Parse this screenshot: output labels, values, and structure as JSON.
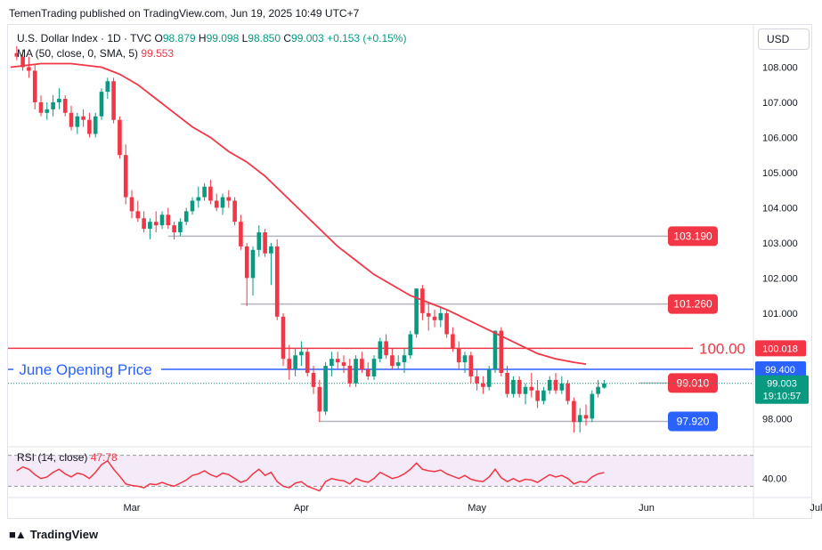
{
  "header": {
    "publisher": "TemenTrading published on TradingView.com, Jun 19, 2025 10:49 UTC+7"
  },
  "legend": {
    "symbol": "U.S. Dollar Index · 1D · TVC",
    "o_label": "O",
    "o_value": "98.879",
    "h_label": "H",
    "h_value": "99.098",
    "l_label": "L",
    "l_value": "98.850",
    "c_label": "C",
    "c_value": "99.003",
    "change": "+0.153 (+0.15%)",
    "ma_label": "MA (50, close, 0, SMA, 5)",
    "ma_value": "99.553",
    "rsi_label": "RSI (14, close)",
    "rsi_value": "47.78"
  },
  "currency": "USD",
  "footer": {
    "logo_icon": "tradingview-logo-icon",
    "logo_text": "TradingView"
  },
  "colors": {
    "up": "#089981",
    "down": "#f23645",
    "ma": "#f23645",
    "blue": "#2962ff",
    "rsi": "#f23645"
  },
  "chart_data": {
    "type": "candlestick",
    "price_ylim": [
      97.4,
      109.0
    ],
    "price_ticks": [
      "108.000",
      "107.000",
      "106.000",
      "105.000",
      "104.000",
      "103.000",
      "102.000",
      "101.000",
      "98.000"
    ],
    "price_tick_values": [
      108,
      107,
      106,
      105,
      104,
      103,
      102,
      101,
      98
    ],
    "x_labels": [
      "Mar",
      "Apr",
      "May",
      "Jun",
      "Jul"
    ],
    "x_label_days": [
      20,
      48,
      77,
      105,
      133
    ],
    "candles": [
      {
        "d": 1,
        "o": 108.4,
        "h": 108.6,
        "l": 108.2,
        "c": 108.3
      },
      {
        "d": 2,
        "o": 108.3,
        "h": 108.5,
        "l": 107.9,
        "c": 108.0
      },
      {
        "d": 3,
        "o": 108.0,
        "h": 108.3,
        "l": 107.7,
        "c": 107.9
      },
      {
        "d": 4,
        "o": 107.9,
        "h": 108.1,
        "l": 106.8,
        "c": 107.0
      },
      {
        "d": 5,
        "o": 107.0,
        "h": 107.2,
        "l": 106.6,
        "c": 106.7
      },
      {
        "d": 6,
        "o": 106.7,
        "h": 107.0,
        "l": 106.5,
        "c": 106.8
      },
      {
        "d": 7,
        "o": 106.8,
        "h": 107.2,
        "l": 106.6,
        "c": 107.0
      },
      {
        "d": 8,
        "o": 107.0,
        "h": 107.4,
        "l": 106.8,
        "c": 107.1
      },
      {
        "d": 9,
        "o": 107.1,
        "h": 107.2,
        "l": 106.6,
        "c": 106.7
      },
      {
        "d": 10,
        "o": 106.7,
        "h": 106.9,
        "l": 106.2,
        "c": 106.3
      },
      {
        "d": 11,
        "o": 106.3,
        "h": 106.7,
        "l": 106.1,
        "c": 106.6
      },
      {
        "d": 12,
        "o": 106.6,
        "h": 106.8,
        "l": 106.3,
        "c": 106.5
      },
      {
        "d": 13,
        "o": 106.5,
        "h": 106.7,
        "l": 106.0,
        "c": 106.1
      },
      {
        "d": 14,
        "o": 106.1,
        "h": 106.7,
        "l": 106.0,
        "c": 106.6
      },
      {
        "d": 15,
        "o": 106.6,
        "h": 107.4,
        "l": 106.5,
        "c": 107.3
      },
      {
        "d": 16,
        "o": 107.3,
        "h": 107.7,
        "l": 107.1,
        "c": 107.6
      },
      {
        "d": 17,
        "o": 107.6,
        "h": 107.7,
        "l": 106.4,
        "c": 106.5
      },
      {
        "d": 18,
        "o": 106.5,
        "h": 106.6,
        "l": 105.4,
        "c": 105.5
      },
      {
        "d": 19,
        "o": 105.5,
        "h": 105.8,
        "l": 104.1,
        "c": 104.3
      },
      {
        "d": 20,
        "o": 104.3,
        "h": 104.5,
        "l": 103.7,
        "c": 103.9
      },
      {
        "d": 21,
        "o": 103.9,
        "h": 104.2,
        "l": 103.6,
        "c": 103.7
      },
      {
        "d": 22,
        "o": 103.7,
        "h": 103.9,
        "l": 103.3,
        "c": 103.4
      },
      {
        "d": 23,
        "o": 103.4,
        "h": 103.7,
        "l": 103.1,
        "c": 103.6
      },
      {
        "d": 24,
        "o": 103.6,
        "h": 103.9,
        "l": 103.3,
        "c": 103.5
      },
      {
        "d": 25,
        "o": 103.5,
        "h": 103.9,
        "l": 103.4,
        "c": 103.8
      },
      {
        "d": 26,
        "o": 103.8,
        "h": 104.0,
        "l": 103.4,
        "c": 103.5
      },
      {
        "d": 27,
        "o": 103.5,
        "h": 103.6,
        "l": 103.1,
        "c": 103.3
      },
      {
        "d": 28,
        "o": 103.3,
        "h": 103.7,
        "l": 103.2,
        "c": 103.6
      },
      {
        "d": 29,
        "o": 103.6,
        "h": 104.0,
        "l": 103.5,
        "c": 103.9
      },
      {
        "d": 30,
        "o": 103.9,
        "h": 104.3,
        "l": 103.8,
        "c": 104.2
      },
      {
        "d": 31,
        "o": 104.2,
        "h": 104.6,
        "l": 104.0,
        "c": 104.3
      },
      {
        "d": 32,
        "o": 104.3,
        "h": 104.7,
        "l": 104.2,
        "c": 104.6
      },
      {
        "d": 33,
        "o": 104.6,
        "h": 104.8,
        "l": 104.1,
        "c": 104.2
      },
      {
        "d": 34,
        "o": 104.2,
        "h": 104.4,
        "l": 103.9,
        "c": 104.0
      },
      {
        "d": 35,
        "o": 104.0,
        "h": 104.4,
        "l": 103.8,
        "c": 104.3
      },
      {
        "d": 36,
        "o": 104.3,
        "h": 104.5,
        "l": 104.0,
        "c": 104.2
      },
      {
        "d": 37,
        "o": 104.2,
        "h": 104.3,
        "l": 103.5,
        "c": 103.6
      },
      {
        "d": 38,
        "o": 103.6,
        "h": 103.8,
        "l": 102.8,
        "c": 102.9
      },
      {
        "d": 39,
        "o": 102.9,
        "h": 103.0,
        "l": 101.2,
        "c": 102.0
      },
      {
        "d": 40,
        "o": 102.0,
        "h": 102.9,
        "l": 101.5,
        "c": 102.8
      },
      {
        "d": 41,
        "o": 102.8,
        "h": 103.5,
        "l": 102.6,
        "c": 103.3
      },
      {
        "d": 42,
        "o": 103.3,
        "h": 103.4,
        "l": 102.6,
        "c": 102.7
      },
      {
        "d": 43,
        "o": 102.7,
        "h": 103.0,
        "l": 101.8,
        "c": 102.9
      },
      {
        "d": 44,
        "o": 102.9,
        "h": 103.1,
        "l": 100.8,
        "c": 100.9
      },
      {
        "d": 45,
        "o": 100.9,
        "h": 101.0,
        "l": 99.5,
        "c": 99.7
      },
      {
        "d": 46,
        "o": 99.7,
        "h": 100.1,
        "l": 99.1,
        "c": 99.4
      },
      {
        "d": 47,
        "o": 99.4,
        "h": 100.0,
        "l": 99.2,
        "c": 99.8
      },
      {
        "d": 48,
        "o": 99.8,
        "h": 100.2,
        "l": 99.5,
        "c": 99.9
      },
      {
        "d": 49,
        "o": 99.9,
        "h": 100.0,
        "l": 99.2,
        "c": 99.3
      },
      {
        "d": 50,
        "o": 99.3,
        "h": 99.5,
        "l": 98.7,
        "c": 98.9
      },
      {
        "d": 51,
        "o": 98.9,
        "h": 99.1,
        "l": 97.9,
        "c": 98.2
      },
      {
        "d": 52,
        "o": 98.2,
        "h": 99.6,
        "l": 98.1,
        "c": 99.5
      },
      {
        "d": 53,
        "o": 99.5,
        "h": 99.9,
        "l": 99.2,
        "c": 99.7
      },
      {
        "d": 54,
        "o": 99.7,
        "h": 99.9,
        "l": 99.4,
        "c": 99.6
      },
      {
        "d": 55,
        "o": 99.6,
        "h": 99.8,
        "l": 99.3,
        "c": 99.5
      },
      {
        "d": 56,
        "o": 99.5,
        "h": 99.7,
        "l": 98.9,
        "c": 99.0
      },
      {
        "d": 57,
        "o": 99.0,
        "h": 99.8,
        "l": 98.9,
        "c": 99.7
      },
      {
        "d": 58,
        "o": 99.7,
        "h": 99.9,
        "l": 99.3,
        "c": 99.4
      },
      {
        "d": 59,
        "o": 99.4,
        "h": 99.6,
        "l": 99.1,
        "c": 99.2
      },
      {
        "d": 60,
        "o": 99.2,
        "h": 99.8,
        "l": 99.1,
        "c": 99.7
      },
      {
        "d": 61,
        "o": 99.7,
        "h": 100.3,
        "l": 99.6,
        "c": 100.2
      },
      {
        "d": 62,
        "o": 100.2,
        "h": 100.4,
        "l": 99.7,
        "c": 99.8
      },
      {
        "d": 63,
        "o": 99.8,
        "h": 100.0,
        "l": 99.4,
        "c": 99.5
      },
      {
        "d": 64,
        "o": 99.5,
        "h": 99.8,
        "l": 99.4,
        "c": 99.6
      },
      {
        "d": 65,
        "o": 99.6,
        "h": 100.0,
        "l": 99.3,
        "c": 99.8
      },
      {
        "d": 66,
        "o": 99.8,
        "h": 100.5,
        "l": 99.7,
        "c": 100.4
      },
      {
        "d": 67,
        "o": 100.4,
        "h": 101.7,
        "l": 100.3,
        "c": 101.7
      },
      {
        "d": 68,
        "o": 101.7,
        "h": 101.8,
        "l": 100.8,
        "c": 101.0
      },
      {
        "d": 69,
        "o": 101.0,
        "h": 101.3,
        "l": 100.5,
        "c": 100.9
      },
      {
        "d": 70,
        "o": 100.9,
        "h": 101.1,
        "l": 100.6,
        "c": 100.8
      },
      {
        "d": 71,
        "o": 100.8,
        "h": 101.2,
        "l": 100.6,
        "c": 101.0
      },
      {
        "d": 72,
        "o": 101.0,
        "h": 101.1,
        "l": 100.3,
        "c": 100.4
      },
      {
        "d": 73,
        "o": 100.4,
        "h": 100.6,
        "l": 99.9,
        "c": 100.0
      },
      {
        "d": 74,
        "o": 100.0,
        "h": 100.2,
        "l": 99.4,
        "c": 99.6
      },
      {
        "d": 75,
        "o": 99.6,
        "h": 99.9,
        "l": 99.3,
        "c": 99.8
      },
      {
        "d": 76,
        "o": 99.8,
        "h": 99.9,
        "l": 99.0,
        "c": 99.2
      },
      {
        "d": 77,
        "o": 99.2,
        "h": 99.4,
        "l": 98.8,
        "c": 99.0
      },
      {
        "d": 78,
        "o": 99.0,
        "h": 99.2,
        "l": 98.7,
        "c": 98.9
      },
      {
        "d": 79,
        "o": 98.9,
        "h": 99.5,
        "l": 98.8,
        "c": 99.4
      },
      {
        "d": 80,
        "o": 99.4,
        "h": 100.5,
        "l": 99.3,
        "c": 100.5
      },
      {
        "d": 81,
        "o": 100.5,
        "h": 100.6,
        "l": 99.2,
        "c": 99.3
      },
      {
        "d": 82,
        "o": 99.3,
        "h": 99.5,
        "l": 98.6,
        "c": 98.7
      },
      {
        "d": 83,
        "o": 98.7,
        "h": 99.2,
        "l": 98.6,
        "c": 99.1
      },
      {
        "d": 84,
        "o": 99.1,
        "h": 99.2,
        "l": 98.6,
        "c": 98.7
      },
      {
        "d": 85,
        "o": 98.7,
        "h": 99.0,
        "l": 98.4,
        "c": 98.9
      },
      {
        "d": 86,
        "o": 98.9,
        "h": 99.3,
        "l": 98.6,
        "c": 98.8
      },
      {
        "d": 87,
        "o": 98.8,
        "h": 99.1,
        "l": 98.3,
        "c": 98.5
      },
      {
        "d": 88,
        "o": 98.5,
        "h": 98.9,
        "l": 98.4,
        "c": 98.8
      },
      {
        "d": 89,
        "o": 98.8,
        "h": 99.2,
        "l": 98.7,
        "c": 99.1
      },
      {
        "d": 90,
        "o": 99.1,
        "h": 99.3,
        "l": 98.7,
        "c": 98.8
      },
      {
        "d": 91,
        "o": 98.8,
        "h": 99.2,
        "l": 98.7,
        "c": 99.0
      },
      {
        "d": 92,
        "o": 99.0,
        "h": 99.1,
        "l": 98.4,
        "c": 98.5
      },
      {
        "d": 93,
        "o": 98.5,
        "h": 98.6,
        "l": 97.6,
        "c": 97.9
      },
      {
        "d": 94,
        "o": 97.9,
        "h": 98.3,
        "l": 97.6,
        "c": 98.1
      },
      {
        "d": 95,
        "o": 98.1,
        "h": 98.4,
        "l": 97.8,
        "c": 98.0
      },
      {
        "d": 96,
        "o": 98.0,
        "h": 98.8,
        "l": 97.9,
        "c": 98.7
      },
      {
        "d": 97,
        "o": 98.7,
        "h": 99.1,
        "l": 98.6,
        "c": 98.9
      },
      {
        "d": 98,
        "o": 98.879,
        "h": 99.098,
        "l": 98.85,
        "c": 99.003
      }
    ],
    "ma_line": [
      [
        0,
        108.0
      ],
      [
        5,
        108.1
      ],
      [
        10,
        108.1
      ],
      [
        15,
        108.0
      ],
      [
        18,
        107.8
      ],
      [
        21,
        107.5
      ],
      [
        24,
        107.1
      ],
      [
        27,
        106.7
      ],
      [
        30,
        106.3
      ],
      [
        33,
        106.0
      ],
      [
        36,
        105.6
      ],
      [
        39,
        105.3
      ],
      [
        42,
        104.9
      ],
      [
        45,
        104.4
      ],
      [
        48,
        103.9
      ],
      [
        51,
        103.4
      ],
      [
        54,
        102.9
      ],
      [
        57,
        102.5
      ],
      [
        60,
        102.1
      ],
      [
        63,
        101.8
      ],
      [
        66,
        101.5
      ],
      [
        69,
        101.3
      ],
      [
        72,
        101.1
      ],
      [
        75,
        100.85
      ],
      [
        78,
        100.6
      ],
      [
        81,
        100.35
      ],
      [
        84,
        100.1
      ],
      [
        87,
        99.85
      ],
      [
        90,
        99.7
      ],
      [
        93,
        99.6
      ],
      [
        95,
        99.55
      ]
    ],
    "ma_ylim_note": "",
    "horizontal_levels": [
      {
        "value": 103.19,
        "from_day": 26,
        "label": "103.190"
      },
      {
        "value": 101.26,
        "from_day": 38,
        "label": "101.260"
      },
      {
        "value": 97.92,
        "from_day": 51,
        "label": "97.920"
      }
    ],
    "line_100": {
      "value": 100.0,
      "label": "100.00",
      "axis_label": "100.018"
    },
    "june_open": {
      "value": 99.4,
      "label": "June Opening Price",
      "axis_label": "99.400"
    },
    "price_marker": {
      "value": 99.01,
      "label": "99.010"
    },
    "current": {
      "value": 99.003,
      "label": "99.003",
      "countdown": "19:10:57"
    },
    "rsi": {
      "ylim": [
        20,
        80
      ],
      "upper": 70,
      "lower": 30,
      "tick": "40.00",
      "tick_value": 40,
      "values": [
        [
          1,
          50
        ],
        [
          2,
          55
        ],
        [
          3,
          52
        ],
        [
          4,
          45
        ],
        [
          5,
          40
        ],
        [
          6,
          42
        ],
        [
          7,
          48
        ],
        [
          8,
          52
        ],
        [
          9,
          46
        ],
        [
          10,
          42
        ],
        [
          11,
          47
        ],
        [
          12,
          45
        ],
        [
          13,
          40
        ],
        [
          14,
          48
        ],
        [
          15,
          58
        ],
        [
          16,
          63
        ],
        [
          17,
          52
        ],
        [
          18,
          43
        ],
        [
          19,
          33
        ],
        [
          20,
          31
        ],
        [
          21,
          30
        ],
        [
          22,
          28
        ],
        [
          23,
          33
        ],
        [
          24,
          32
        ],
        [
          25,
          35
        ],
        [
          26,
          32
        ],
        [
          27,
          30
        ],
        [
          28,
          34
        ],
        [
          29,
          38
        ],
        [
          30,
          44
        ],
        [
          31,
          46
        ],
        [
          32,
          50
        ],
        [
          33,
          45
        ],
        [
          34,
          42
        ],
        [
          35,
          47
        ],
        [
          36,
          45
        ],
        [
          37,
          40
        ],
        [
          38,
          35
        ],
        [
          39,
          38
        ],
        [
          40,
          46
        ],
        [
          41,
          52
        ],
        [
          42,
          44
        ],
        [
          43,
          48
        ],
        [
          44,
          36
        ],
        [
          45,
          30
        ],
        [
          46,
          28
        ],
        [
          47,
          34
        ],
        [
          48,
          36
        ],
        [
          49,
          30
        ],
        [
          50,
          27
        ],
        [
          51,
          24
        ],
        [
          52,
          36
        ],
        [
          53,
          40
        ],
        [
          54,
          38
        ],
        [
          55,
          37
        ],
        [
          56,
          33
        ],
        [
          57,
          40
        ],
        [
          58,
          37
        ],
        [
          59,
          35
        ],
        [
          60,
          40
        ],
        [
          61,
          48
        ],
        [
          62,
          44
        ],
        [
          63,
          40
        ],
        [
          64,
          42
        ],
        [
          65,
          46
        ],
        [
          66,
          52
        ],
        [
          67,
          60
        ],
        [
          68,
          52
        ],
        [
          69,
          50
        ],
        [
          70,
          49
        ],
        [
          71,
          51
        ],
        [
          72,
          46
        ],
        [
          73,
          43
        ],
        [
          74,
          40
        ],
        [
          75,
          44
        ],
        [
          76,
          39
        ],
        [
          77,
          37
        ],
        [
          78,
          36
        ],
        [
          79,
          42
        ],
        [
          80,
          52
        ],
        [
          81,
          41
        ],
        [
          82,
          36
        ],
        [
          83,
          40
        ],
        [
          84,
          36
        ],
        [
          85,
          39
        ],
        [
          86,
          38
        ],
        [
          87,
          35
        ],
        [
          88,
          40
        ],
        [
          89,
          45
        ],
        [
          90,
          42
        ],
        [
          91,
          44
        ],
        [
          92,
          40
        ],
        [
          93,
          33
        ],
        [
          94,
          36
        ],
        [
          95,
          35
        ],
        [
          96,
          42
        ],
        [
          97,
          46
        ],
        [
          98,
          47.78
        ]
      ]
    }
  }
}
